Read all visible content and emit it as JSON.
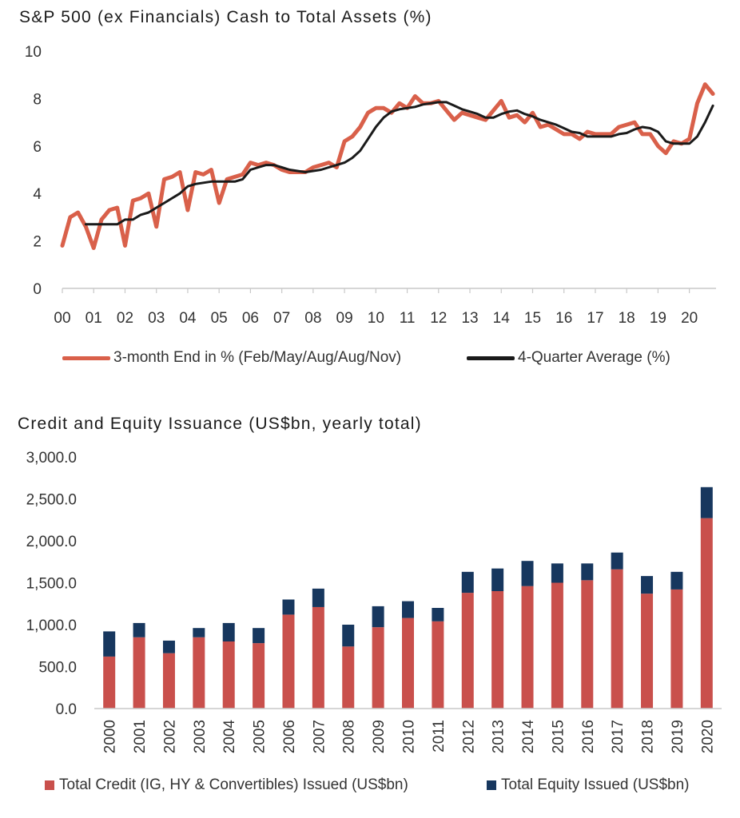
{
  "chart_data": [
    {
      "type": "line",
      "title": "S&P 500 (ex Financials) Cash to Total Assets (%)",
      "xlabel": "",
      "ylabel": "",
      "ylim": [
        0,
        10
      ],
      "yticks": [
        "0",
        "2",
        "4",
        "6",
        "8",
        "10"
      ],
      "xticks": [
        "00",
        "01",
        "02",
        "03",
        "04",
        "05",
        "06",
        "07",
        "08",
        "09",
        "10",
        "11",
        "12",
        "13",
        "14",
        "15",
        "16",
        "17",
        "18",
        "19",
        "20"
      ],
      "xlim": [
        2000,
        2020.85
      ],
      "grid": false,
      "legend_position": "bottom",
      "series": [
        {
          "name": "3-month End in % (Feb/May/Aug/Aug/Nov)",
          "color": "#d9604a",
          "x": [
            2000.0,
            2000.25,
            2000.5,
            2000.75,
            2001.0,
            2001.25,
            2001.5,
            2001.75,
            2002.0,
            2002.25,
            2002.5,
            2002.75,
            2003.0,
            2003.25,
            2003.5,
            2003.75,
            2004.0,
            2004.25,
            2004.5,
            2004.75,
            2005.0,
            2005.25,
            2005.5,
            2005.75,
            2006.0,
            2006.25,
            2006.5,
            2006.75,
            2007.0,
            2007.25,
            2007.5,
            2007.75,
            2008.0,
            2008.25,
            2008.5,
            2008.75,
            2009.0,
            2009.25,
            2009.5,
            2009.75,
            2010.0,
            2010.25,
            2010.5,
            2010.75,
            2011.0,
            2011.25,
            2011.5,
            2011.75,
            2012.0,
            2012.25,
            2012.5,
            2012.75,
            2013.0,
            2013.25,
            2013.5,
            2013.75,
            2014.0,
            2014.25,
            2014.5,
            2014.75,
            2015.0,
            2015.25,
            2015.5,
            2015.75,
            2016.0,
            2016.25,
            2016.5,
            2016.75,
            2017.0,
            2017.25,
            2017.5,
            2017.75,
            2018.0,
            2018.25,
            2018.5,
            2018.75,
            2019.0,
            2019.25,
            2019.5,
            2019.75,
            2020.0,
            2020.25,
            2020.5,
            2020.75
          ],
          "values": [
            1.8,
            3.0,
            3.2,
            2.6,
            1.7,
            2.9,
            3.3,
            3.4,
            1.8,
            3.7,
            3.8,
            4.0,
            2.6,
            4.6,
            4.7,
            4.9,
            3.3,
            4.9,
            4.8,
            5.0,
            3.6,
            4.6,
            4.7,
            4.8,
            5.3,
            5.2,
            5.3,
            5.2,
            5.0,
            4.9,
            4.9,
            4.9,
            5.1,
            5.2,
            5.3,
            5.1,
            6.2,
            6.4,
            6.8,
            7.4,
            7.6,
            7.6,
            7.4,
            7.8,
            7.6,
            8.1,
            7.8,
            7.8,
            7.9,
            7.5,
            7.1,
            7.4,
            7.3,
            7.2,
            7.1,
            7.5,
            7.9,
            7.2,
            7.3,
            7.0,
            7.4,
            6.8,
            6.9,
            6.7,
            6.5,
            6.5,
            6.3,
            6.6,
            6.5,
            6.5,
            6.5,
            6.8,
            6.9,
            7.0,
            6.5,
            6.5,
            6.0,
            5.7,
            6.2,
            6.1,
            6.3,
            7.8,
            8.6,
            8.2
          ]
        },
        {
          "name": "4-Quarter Average (%)",
          "color": "#1a1a1a",
          "x": [
            2000.75,
            2001.0,
            2001.25,
            2001.5,
            2001.75,
            2002.0,
            2002.25,
            2002.5,
            2002.75,
            2003.0,
            2003.25,
            2003.5,
            2003.75,
            2004.0,
            2004.25,
            2004.5,
            2004.75,
            2005.0,
            2005.25,
            2005.5,
            2005.75,
            2006.0,
            2006.25,
            2006.5,
            2006.75,
            2007.0,
            2007.25,
            2007.5,
            2007.75,
            2008.0,
            2008.25,
            2008.5,
            2008.75,
            2009.0,
            2009.25,
            2009.5,
            2009.75,
            2010.0,
            2010.25,
            2010.5,
            2010.75,
            2011.0,
            2011.25,
            2011.5,
            2011.75,
            2012.0,
            2012.25,
            2012.5,
            2012.75,
            2013.0,
            2013.25,
            2013.5,
            2013.75,
            2014.0,
            2014.25,
            2014.5,
            2014.75,
            2015.0,
            2015.25,
            2015.5,
            2015.75,
            2016.0,
            2016.25,
            2016.5,
            2016.75,
            2017.0,
            2017.25,
            2017.5,
            2017.75,
            2018.0,
            2018.25,
            2018.5,
            2018.75,
            2019.0,
            2019.25,
            2019.5,
            2019.75,
            2020.0,
            2020.25,
            2020.5,
            2020.75
          ],
          "values": [
            2.7,
            2.7,
            2.7,
            2.7,
            2.7,
            2.9,
            2.9,
            3.1,
            3.2,
            3.4,
            3.6,
            3.8,
            4.0,
            4.3,
            4.4,
            4.45,
            4.5,
            4.5,
            4.5,
            4.5,
            4.6,
            5.0,
            5.1,
            5.2,
            5.2,
            5.1,
            5.0,
            4.95,
            4.9,
            4.95,
            5.0,
            5.1,
            5.2,
            5.3,
            5.5,
            5.8,
            6.3,
            6.8,
            7.2,
            7.45,
            7.55,
            7.6,
            7.65,
            7.75,
            7.8,
            7.85,
            7.85,
            7.7,
            7.55,
            7.45,
            7.35,
            7.2,
            7.2,
            7.35,
            7.45,
            7.5,
            7.35,
            7.25,
            7.1,
            7.0,
            6.9,
            6.75,
            6.6,
            6.55,
            6.4,
            6.4,
            6.4,
            6.4,
            6.5,
            6.55,
            6.7,
            6.8,
            6.75,
            6.6,
            6.2,
            6.1,
            6.1,
            6.1,
            6.4,
            7.0,
            7.7
          ]
        }
      ]
    },
    {
      "type": "bar",
      "stacked": true,
      "title": "Credit and Equity Issuance (US$bn, yearly total)",
      "xlabel": "",
      "ylabel": "",
      "ylim": [
        0,
        3000
      ],
      "yticks": [
        "0.0",
        "500.0",
        "1,000.0",
        "1,500.0",
        "2,000.0",
        "2,500.0",
        "3,000.0"
      ],
      "grid": false,
      "legend_position": "bottom",
      "categories": [
        "2000",
        "2001",
        "2002",
        "2003",
        "2004",
        "2005",
        "2006",
        "2007",
        "2008",
        "2009",
        "2010",
        "2011",
        "2012",
        "2013",
        "2014",
        "2015",
        "2016",
        "2017",
        "2018",
        "2019",
        "2020"
      ],
      "series": [
        {
          "name": "Total Credit (IG, HY & Convertibles) Issued (US$bn)",
          "color": "#c9504c",
          "values": [
            620,
            850,
            660,
            850,
            800,
            780,
            1120,
            1210,
            740,
            970,
            1080,
            1040,
            1380,
            1400,
            1460,
            1500,
            1530,
            1660,
            1370,
            1420,
            2270
          ]
        },
        {
          "name": "Total Equity Issued (US$bn)",
          "color": "#17375e",
          "values": [
            300,
            170,
            150,
            110,
            220,
            180,
            180,
            220,
            260,
            250,
            200,
            160,
            250,
            270,
            300,
            230,
            200,
            200,
            210,
            210,
            370
          ]
        }
      ]
    }
  ]
}
